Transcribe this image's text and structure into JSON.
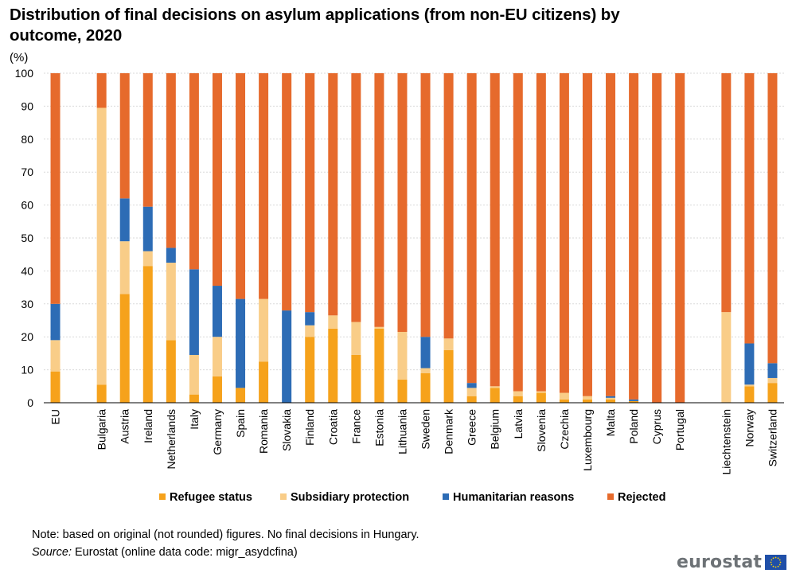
{
  "header": {
    "title": "Distribution of final decisions on asylum applications (from non-EU citizens) by outcome, 2020",
    "unit": "(%)"
  },
  "footer": {
    "note": "Note: based on original (not rounded) figures. No final decisions in Hungary.",
    "source_label": "Source:",
    "source_text": " Eurostat (online data code: migr_asydcfina)",
    "logo_text": "eurostat"
  },
  "colors": {
    "refugee": "#F6A21B",
    "subsidiary": "#F9CD88",
    "humanitarian": "#2D6CB5",
    "rejected": "#E66A2C",
    "grid": "#D9D9D9",
    "axis": "#000000"
  },
  "chart_data": {
    "type": "bar",
    "stacked": true,
    "ylim": [
      0,
      100
    ],
    "yticks": [
      0,
      10,
      20,
      30,
      40,
      50,
      60,
      70,
      80,
      90,
      100
    ],
    "grid": true,
    "legend_position": "bottom",
    "categories": [
      "EU",
      "",
      "Bulgaria",
      "Austria",
      "Ireland",
      "Netherlands",
      "Italy",
      "Germany",
      "Spain",
      "Romania",
      "Slovakia",
      "Finland",
      "Croatia",
      "France",
      "Estonia",
      "Lithuania",
      "Sweden",
      "Denmark",
      "Greece",
      "Belgium",
      "Latvia",
      "Slovenia",
      "Czechia",
      "Luxembourg",
      "Malta",
      "Poland",
      "Cyprus",
      "Portugal",
      "",
      "Liechtenstein",
      "Norway",
      "Switzerland"
    ],
    "series": [
      {
        "name": "Refugee status",
        "color_key": "refugee",
        "values": [
          9.5,
          null,
          5.5,
          33,
          41.5,
          19,
          2.5,
          8,
          4.5,
          12.5,
          0,
          20,
          22.5,
          14.5,
          22.5,
          7,
          9,
          16,
          2,
          4.5,
          2,
          3,
          1,
          1,
          1,
          0.5,
          0,
          0,
          null,
          0,
          5,
          6
        ]
      },
      {
        "name": "Subsidiary protection",
        "color_key": "subsidiary",
        "values": [
          9.5,
          null,
          84,
          16,
          4.5,
          23.5,
          12,
          12,
          0,
          19,
          0,
          3.5,
          4,
          10,
          0.5,
          14.5,
          1.5,
          3.5,
          2.5,
          0.5,
          1.5,
          0.5,
          2,
          1,
          0.5,
          0,
          0,
          0,
          null,
          27.5,
          0.5,
          1.5
        ]
      },
      {
        "name": "Humanitarian reasons",
        "color_key": "humanitarian",
        "values": [
          11,
          null,
          0,
          13,
          13.5,
          4.5,
          26,
          15.5,
          27,
          0,
          28,
          4,
          0,
          0,
          0,
          0,
          9.5,
          0,
          1.5,
          0,
          0,
          0,
          0,
          0,
          0.5,
          0.5,
          0,
          0,
          null,
          0,
          12.5,
          4.5
        ]
      },
      {
        "name": "Rejected",
        "color_key": "rejected",
        "values": [
          70,
          null,
          10.5,
          38,
          40.5,
          53,
          59.5,
          64.5,
          68.5,
          68.5,
          72,
          72.5,
          73.5,
          75.5,
          77,
          78.5,
          80,
          80.5,
          94,
          95,
          96.5,
          96.5,
          97,
          98,
          98,
          99,
          100,
          100,
          null,
          72.5,
          82,
          88
        ]
      }
    ]
  }
}
